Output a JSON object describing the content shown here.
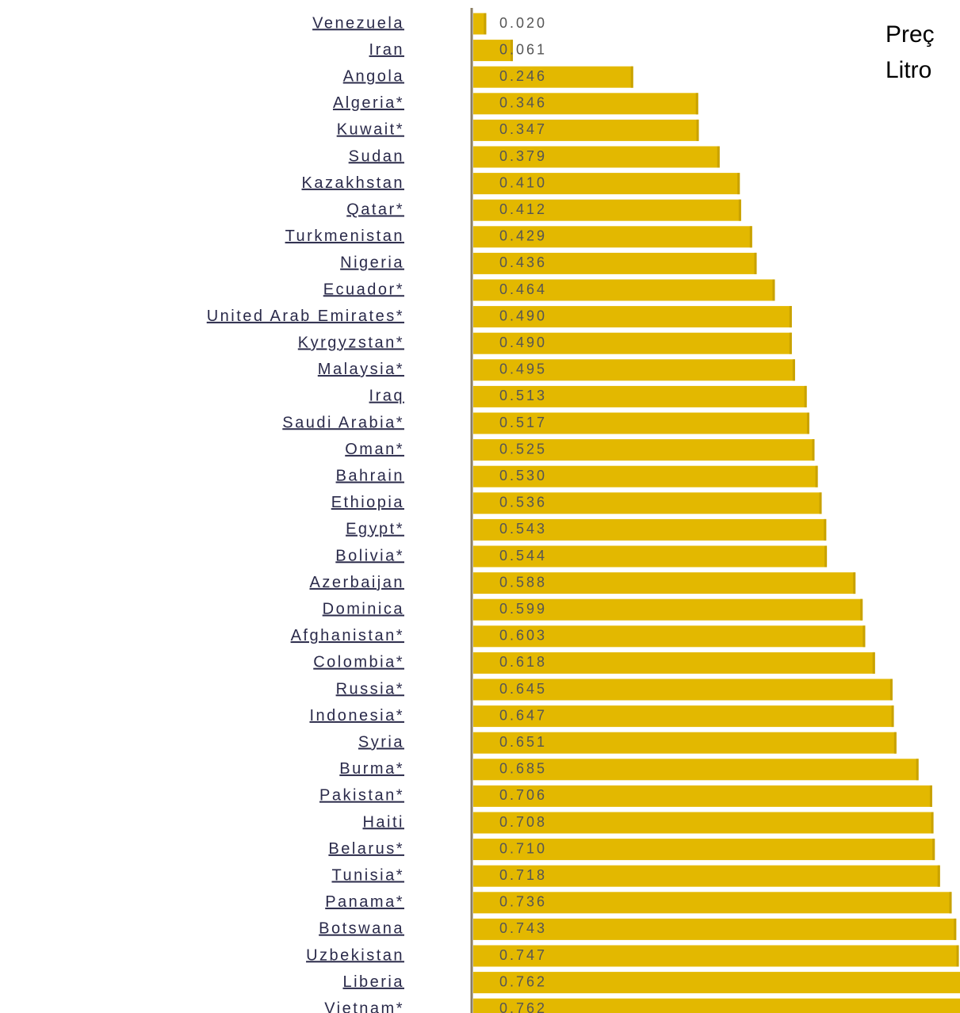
{
  "chart_data": {
    "type": "bar",
    "orientation": "horizontal",
    "title_lines": [
      "Preç",
      "Litro"
    ],
    "categories": [
      "Venezuela",
      "Iran",
      "Angola",
      "Algeria*",
      "Kuwait*",
      "Sudan",
      "Kazakhstan",
      "Qatar*",
      "Turkmenistan",
      "Nigeria",
      "Ecuador*",
      "United Arab Emirates*",
      "Kyrgyzstan*",
      "Malaysia*",
      "Iraq",
      "Saudi Arabia*",
      "Oman*",
      "Bahrain",
      "Ethiopia",
      "Egypt*",
      "Bolivia*",
      "Azerbaijan",
      "Dominica",
      "Afghanistan*",
      "Colombia*",
      "Russia*",
      "Indonesia*",
      "Syria",
      "Burma*",
      "Pakistan*",
      "Haiti",
      "Belarus*",
      "Tunisia*",
      "Panama*",
      "Botswana",
      "Uzbekistan",
      "Liberia",
      "Vietnam*"
    ],
    "values": [
      0.02,
      0.061,
      0.246,
      0.346,
      0.347,
      0.379,
      0.41,
      0.412,
      0.429,
      0.436,
      0.464,
      0.49,
      0.49,
      0.495,
      0.513,
      0.517,
      0.525,
      0.53,
      0.536,
      0.543,
      0.544,
      0.588,
      0.599,
      0.603,
      0.618,
      0.645,
      0.647,
      0.651,
      0.685,
      0.706,
      0.708,
      0.71,
      0.718,
      0.736,
      0.743,
      0.747,
      0.762,
      0.762
    ],
    "value_labels": [
      "0.020",
      "0.061",
      "0.246",
      "0.346",
      "0.347",
      "0.379",
      "0.410",
      "0.412",
      "0.429",
      "0.436",
      "0.464",
      "0.490",
      "0.490",
      "0.495",
      "0.513",
      "0.517",
      "0.525",
      "0.530",
      "0.536",
      "0.543",
      "0.544",
      "0.588",
      "0.599",
      "0.603",
      "0.618",
      "0.645",
      "0.647",
      "0.651",
      "0.685",
      "0.706",
      "0.708",
      "0.710",
      "0.718",
      "0.736",
      "0.743",
      "0.747",
      "0.762",
      "0.762"
    ],
    "color": "#e3b800"
  }
}
